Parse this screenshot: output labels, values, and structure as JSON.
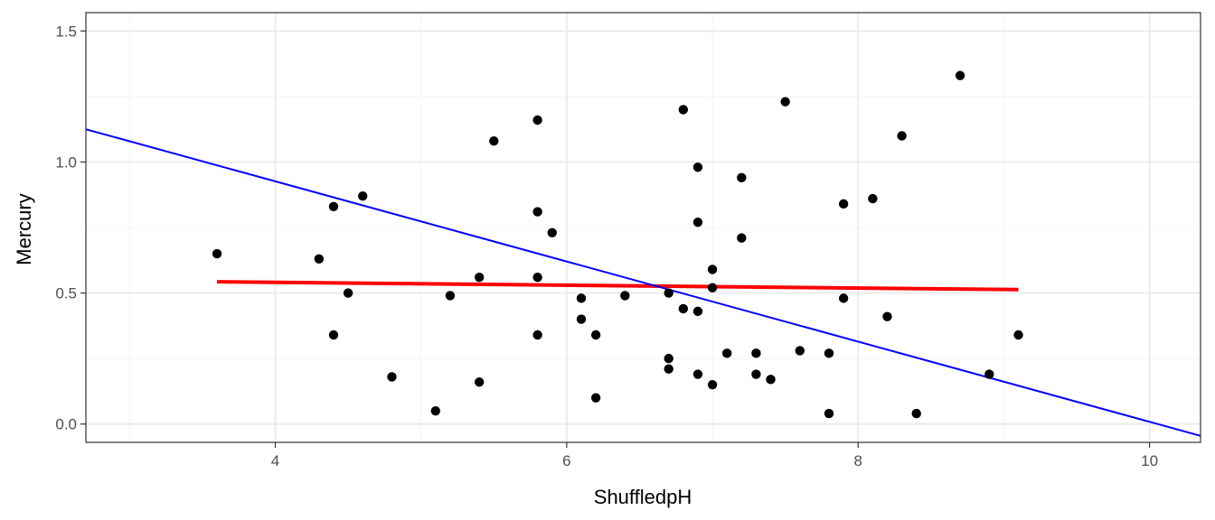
{
  "chart_data": {
    "type": "scatter",
    "xlabel": "ShuffledpH",
    "ylabel": "Mercury",
    "xlim": [
      2.7,
      10.35
    ],
    "ylim": [
      -0.07,
      1.57
    ],
    "x_ticks": [
      4,
      6,
      8,
      10
    ],
    "x_tick_labels": [
      "4",
      "6",
      "8",
      "10"
    ],
    "x_minor_ticks": [
      3,
      5,
      7,
      9
    ],
    "y_ticks": [
      0.0,
      0.5,
      1.0,
      1.5
    ],
    "y_tick_labels": [
      "0.0",
      "0.5",
      "1.0",
      "1.5"
    ],
    "y_minor_ticks": [
      0.25,
      0.75,
      1.25
    ],
    "grid": true,
    "points": [
      {
        "x": 3.6,
        "y": 0.65
      },
      {
        "x": 4.3,
        "y": 0.63
      },
      {
        "x": 4.4,
        "y": 0.83
      },
      {
        "x": 4.4,
        "y": 0.34
      },
      {
        "x": 4.5,
        "y": 0.5
      },
      {
        "x": 4.6,
        "y": 0.87
      },
      {
        "x": 4.8,
        "y": 0.18
      },
      {
        "x": 5.1,
        "y": 0.05
      },
      {
        "x": 5.2,
        "y": 0.49
      },
      {
        "x": 5.4,
        "y": 0.56
      },
      {
        "x": 5.4,
        "y": 0.16
      },
      {
        "x": 5.5,
        "y": 1.08
      },
      {
        "x": 5.8,
        "y": 1.16
      },
      {
        "x": 5.8,
        "y": 0.81
      },
      {
        "x": 5.8,
        "y": 0.56
      },
      {
        "x": 5.8,
        "y": 0.34
      },
      {
        "x": 5.9,
        "y": 0.73
      },
      {
        "x": 6.1,
        "y": 0.48
      },
      {
        "x": 6.1,
        "y": 0.4
      },
      {
        "x": 6.2,
        "y": 0.34
      },
      {
        "x": 6.2,
        "y": 0.1
      },
      {
        "x": 6.4,
        "y": 0.49
      },
      {
        "x": 6.7,
        "y": 0.5
      },
      {
        "x": 6.7,
        "y": 0.25
      },
      {
        "x": 6.7,
        "y": 0.21
      },
      {
        "x": 6.8,
        "y": 1.2
      },
      {
        "x": 6.8,
        "y": 0.44
      },
      {
        "x": 6.9,
        "y": 0.98
      },
      {
        "x": 6.9,
        "y": 0.77
      },
      {
        "x": 6.9,
        "y": 0.43
      },
      {
        "x": 6.9,
        "y": 0.19
      },
      {
        "x": 7.0,
        "y": 0.59
      },
      {
        "x": 7.0,
        "y": 0.52
      },
      {
        "x": 7.0,
        "y": 0.15
      },
      {
        "x": 7.1,
        "y": 0.27
      },
      {
        "x": 7.2,
        "y": 0.94
      },
      {
        "x": 7.2,
        "y": 0.71
      },
      {
        "x": 7.3,
        "y": 0.27
      },
      {
        "x": 7.3,
        "y": 0.19
      },
      {
        "x": 7.4,
        "y": 0.17
      },
      {
        "x": 7.5,
        "y": 1.23
      },
      {
        "x": 7.6,
        "y": 0.28
      },
      {
        "x": 7.8,
        "y": 0.27
      },
      {
        "x": 7.8,
        "y": 0.04
      },
      {
        "x": 7.9,
        "y": 0.84
      },
      {
        "x": 7.9,
        "y": 0.48
      },
      {
        "x": 8.1,
        "y": 0.86
      },
      {
        "x": 8.2,
        "y": 0.41
      },
      {
        "x": 8.3,
        "y": 1.1
      },
      {
        "x": 8.4,
        "y": 0.04
      },
      {
        "x": 8.7,
        "y": 1.33
      },
      {
        "x": 8.9,
        "y": 0.19
      },
      {
        "x": 9.1,
        "y": 0.34
      }
    ],
    "lines": [
      {
        "color": "#ff0000",
        "width": 4,
        "x": [
          3.6,
          9.1
        ],
        "y": [
          0.543,
          0.513
        ]
      },
      {
        "color": "#0000ff",
        "width": 2,
        "x": [
          2.7,
          10.35
        ],
        "y": [
          1.125,
          -0.045
        ]
      }
    ],
    "colors": {
      "points": "#000000",
      "grid_major": "#ebebeb",
      "grid_minor": "#f5f5f5",
      "panel_border": "#333333"
    }
  }
}
